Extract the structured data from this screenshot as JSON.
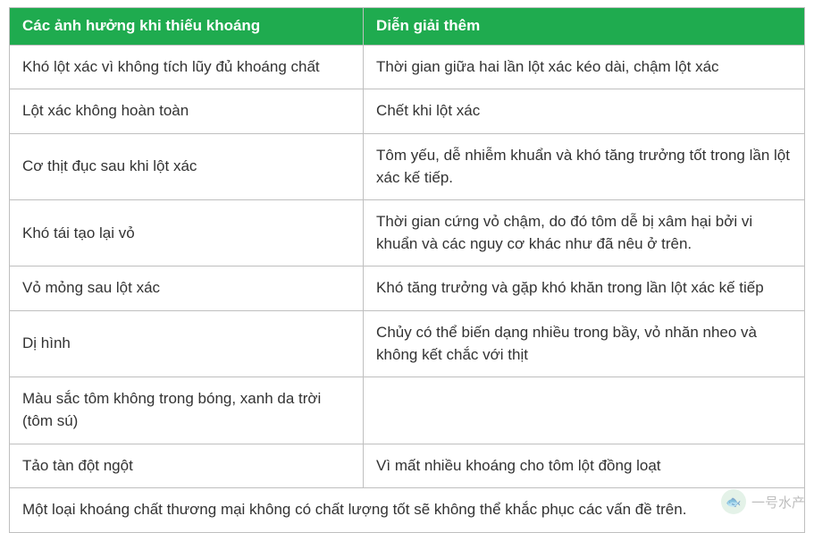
{
  "table": {
    "header_bg": "#1fab4f",
    "header_text_color": "#ffffff",
    "border_color": "#bfbfbf",
    "font_size": 17,
    "columns": [
      "Các ảnh hưởng khi thiếu khoáng",
      "Diễn giải thêm"
    ],
    "column_widths_pct": [
      44.5,
      55.5
    ],
    "rows": [
      [
        "Khó lột xác vì không tích lũy đủ khoáng chất",
        "Thời gian giữa hai lần lột xác kéo dài, chậm lột xác"
      ],
      [
        "Lột xác không hoàn toàn",
        "Chết khi lột xác"
      ],
      [
        "Cơ thịt đục sau khi lột xác",
        "Tôm yếu, dễ nhiễm khuẩn và khó tăng trưởng tốt trong lần lột xác kế tiếp."
      ],
      [
        "Khó tái tạo lại vỏ",
        "Thời gian cứng vỏ chậm, do đó tôm dễ bị xâm hại bởi vi khuẩn và các nguy cơ khác như đã nêu ở trên."
      ],
      [
        "Vỏ mỏng sau lột xác",
        "Khó tăng trưởng và gặp khó khăn trong lần lột xác kế tiếp"
      ],
      [
        "Dị hình",
        "Chủy có thể biến dạng nhiều trong bầy, vỏ nhăn nheo và không kết chắc với thịt"
      ],
      [
        "Màu sắc tôm không trong bóng, xanh da trời (tôm sú)",
        ""
      ],
      [
        "Tảo tàn đột ngột",
        "Vì mất nhiều khoáng cho tôm lột đồng loạt"
      ]
    ],
    "footer": "Một loại khoáng chất thương mại không có chất lượng tốt sẽ không thể khắc phục các vấn đề trên."
  },
  "watermark": {
    "text": "一号水产",
    "avatar_glyph": "🐟"
  }
}
